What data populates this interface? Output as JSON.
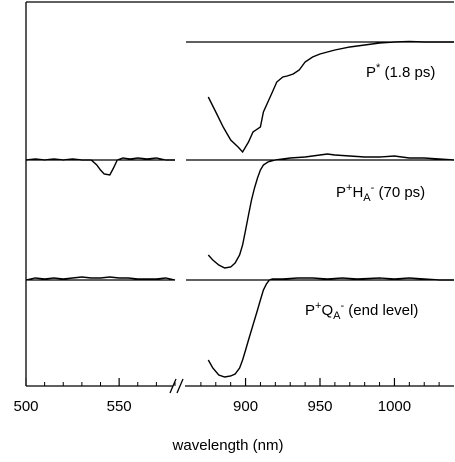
{
  "chart_data": {
    "type": "line",
    "xlabel": "wavelength (nm)",
    "axis_break": "//",
    "x_ticks": [
      500,
      550,
      900,
      950,
      1000
    ],
    "xlim_left": [
      500,
      580
    ],
    "xlim_right": [
      860,
      1040
    ],
    "y_axis_ticks": false,
    "series": [
      {
        "name": "P* (1.8 ps)",
        "baseline": 0,
        "left": [
          [
            500,
            0
          ],
          [
            520,
            0
          ],
          [
            540,
            0.01
          ],
          [
            560,
            0
          ],
          [
            580,
            0
          ]
        ],
        "right": [
          [
            875,
            -0.55
          ],
          [
            880,
            -0.7
          ],
          [
            885,
            -0.85
          ],
          [
            890,
            -0.98
          ],
          [
            895,
            -1.05
          ],
          [
            898,
            -1.1
          ],
          [
            902,
            -1.0
          ],
          [
            905,
            -0.9
          ],
          [
            910,
            -0.85
          ],
          [
            912,
            -0.7
          ],
          [
            915,
            -0.6
          ],
          [
            918,
            -0.5
          ],
          [
            921,
            -0.4
          ],
          [
            925,
            -0.35
          ],
          [
            928,
            -0.34
          ],
          [
            932,
            -0.32
          ],
          [
            936,
            -0.28
          ],
          [
            940,
            -0.2
          ],
          [
            945,
            -0.15
          ],
          [
            950,
            -0.12
          ],
          [
            955,
            -0.1
          ],
          [
            960,
            -0.08
          ],
          [
            970,
            -0.05
          ],
          [
            980,
            -0.03
          ],
          [
            990,
            -0.01
          ],
          [
            1000,
            0
          ],
          [
            1010,
            0.005
          ],
          [
            1020,
            0
          ],
          [
            1030,
            0
          ],
          [
            1040,
            0
          ]
        ]
      },
      {
        "name": "P+HA- (70 ps)",
        "baseline": 0,
        "left": [
          [
            500,
            0
          ],
          [
            505,
            0.01
          ],
          [
            510,
            0
          ],
          [
            515,
            0.01
          ],
          [
            520,
            0
          ],
          [
            525,
            0.01
          ],
          [
            530,
            0
          ],
          [
            535,
            0
          ],
          [
            538,
            -0.05
          ],
          [
            540,
            -0.1
          ],
          [
            542,
            -0.14
          ],
          [
            545,
            -0.15
          ],
          [
            547,
            -0.08
          ],
          [
            549,
            0
          ],
          [
            552,
            0.02
          ],
          [
            556,
            0.01
          ],
          [
            560,
            0.02
          ],
          [
            565,
            0.01
          ],
          [
            570,
            0.02
          ],
          [
            575,
            0
          ],
          [
            580,
            0
          ]
        ],
        "right": [
          [
            875,
            -0.95
          ],
          [
            878,
            -1.0
          ],
          [
            882,
            -1.05
          ],
          [
            886,
            -1.08
          ],
          [
            890,
            -1.07
          ],
          [
            893,
            -1.03
          ],
          [
            896,
            -0.95
          ],
          [
            898,
            -0.85
          ],
          [
            900,
            -0.7
          ],
          [
            902,
            -0.55
          ],
          [
            904,
            -0.4
          ],
          [
            906,
            -0.28
          ],
          [
            908,
            -0.18
          ],
          [
            910,
            -0.1
          ],
          [
            912,
            -0.05
          ],
          [
            915,
            -0.02
          ],
          [
            920,
            0
          ],
          [
            925,
            0.01
          ],
          [
            930,
            0.02
          ],
          [
            940,
            0.03
          ],
          [
            950,
            0.05
          ],
          [
            955,
            0.06
          ],
          [
            960,
            0.05
          ],
          [
            970,
            0.04
          ],
          [
            980,
            0.03
          ],
          [
            990,
            0.03
          ],
          [
            1000,
            0.04
          ],
          [
            1010,
            0.02
          ],
          [
            1020,
            0.02
          ],
          [
            1030,
            0.01
          ],
          [
            1040,
            0
          ]
        ]
      },
      {
        "name": "P+QA- (end level)",
        "baseline": 0,
        "left": [
          [
            500,
            0
          ],
          [
            505,
            0.02
          ],
          [
            510,
            0.01
          ],
          [
            515,
            0.02
          ],
          [
            520,
            0.01
          ],
          [
            525,
            0.02
          ],
          [
            530,
            0.03
          ],
          [
            535,
            0.02
          ],
          [
            540,
            0.02
          ],
          [
            545,
            0.03
          ],
          [
            550,
            0.02
          ],
          [
            555,
            0.02
          ],
          [
            560,
            0.01
          ],
          [
            565,
            0.01
          ],
          [
            570,
            0.01
          ],
          [
            575,
            0.02
          ],
          [
            580,
            0
          ]
        ],
        "right": [
          [
            875,
            -0.8
          ],
          [
            878,
            -0.88
          ],
          [
            882,
            -0.95
          ],
          [
            886,
            -0.97
          ],
          [
            890,
            -0.96
          ],
          [
            893,
            -0.94
          ],
          [
            896,
            -0.88
          ],
          [
            898,
            -0.8
          ],
          [
            900,
            -0.7
          ],
          [
            902,
            -0.6
          ],
          [
            904,
            -0.5
          ],
          [
            906,
            -0.4
          ],
          [
            908,
            -0.3
          ],
          [
            910,
            -0.2
          ],
          [
            912,
            -0.1
          ],
          [
            914,
            -0.04
          ],
          [
            916,
            0
          ],
          [
            918,
            0.01
          ],
          [
            925,
            0.01
          ],
          [
            935,
            0.02
          ],
          [
            945,
            0.02
          ],
          [
            955,
            0.01
          ],
          [
            965,
            0.02
          ],
          [
            975,
            0.01
          ],
          [
            990,
            0.02
          ],
          [
            1000,
            0.01
          ],
          [
            1010,
            0.02
          ],
          [
            1020,
            0.01
          ],
          [
            1030,
            0
          ],
          [
            1040,
            0
          ]
        ]
      }
    ]
  }
}
